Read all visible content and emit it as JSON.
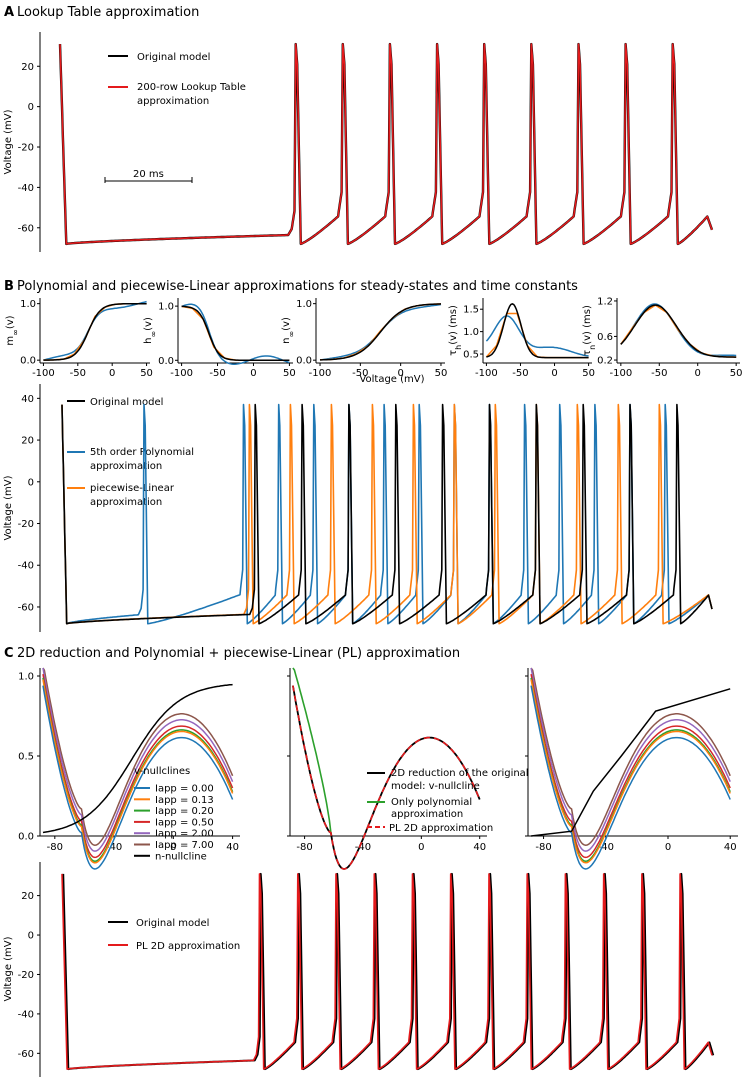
{
  "panels": {
    "A": {
      "label": "A",
      "title": "Lookup Table approximation",
      "chart_data": {
        "type": "line",
        "ylabel": "Voltage (mV)",
        "ylim": [
          -72,
          34
        ],
        "yticks": [
          "20",
          "0",
          "-20",
          "-40",
          "-60"
        ],
        "scalebar": "20 ms",
        "legend": [
          "Original model",
          "200-row Lookup Table approximation"
        ],
        "series": [
          {
            "name": "Original model",
            "color": "#000000"
          },
          {
            "name": "200-row Lookup Table approximation",
            "color": "#e41a1c"
          }
        ],
        "spike_times_ms": [
          0,
          60,
          72,
          84,
          96,
          108,
          120,
          132,
          144,
          156
        ],
        "duration_ms": 166,
        "spike_peak_mv": 31,
        "rest_mv": -68,
        "end_mv": -61
      }
    },
    "B": {
      "label": "B",
      "title": "Polynomial and piecewise-Linear approximations for steady-states and time constants",
      "small_plots": [
        {
          "ylabel_main": "m",
          "ylabel_sub": "∞",
          "ylabel_tail": "(v)",
          "yticks": [
            "1.0",
            "0.0"
          ],
          "ylim": [
            -0.05,
            1.1
          ],
          "kind": "m"
        },
        {
          "ylabel_main": "h",
          "ylabel_sub": "∞",
          "ylabel_tail": "(v)",
          "yticks": [
            "1.0",
            "0.0"
          ],
          "ylim": [
            -0.05,
            1.15
          ],
          "kind": "h"
        },
        {
          "ylabel_main": "n",
          "ylabel_sub": "∞",
          "ylabel_tail": "(v)",
          "yticks": [
            "1.0",
            "0.0"
          ],
          "ylim": [
            -0.05,
            1.1
          ],
          "kind": "n"
        },
        {
          "ylabel_main": "τ",
          "ylabel_sub": "h",
          "ylabel_tail": "(v) (ms)",
          "yticks": [
            "1.5",
            "1.0",
            "0.5"
          ],
          "ylim": [
            0.3,
            1.75
          ],
          "kind": "tauh"
        },
        {
          "ylabel_main": "τ",
          "ylabel_sub": "n",
          "ylabel_tail": "(v) (ms)",
          "yticks": [
            "1.2",
            "0.6",
            "0.2"
          ],
          "ylim": [
            0.15,
            1.25
          ],
          "kind": "taun"
        }
      ],
      "small_xticks": [
        "-100",
        "-50",
        "0",
        "50"
      ],
      "small_xlabel": "Voltage (mV)",
      "chart_data": {
        "type": "line",
        "ylabel": "Voltage (mV)",
        "ylim": [
          -72,
          44
        ],
        "yticks": [
          "40",
          "20",
          "0",
          "-20",
          "-40",
          "-60"
        ],
        "legend": [
          "Original model",
          "5th order Polynomial approximation",
          "piecewise-Linear approximation"
        ],
        "series": [
          {
            "name": "Original model",
            "color": "#000000",
            "spike_times_ms": [
              0,
              66,
              82,
              98,
              114,
              130,
              146,
              162,
              178,
              194,
              210
            ]
          },
          {
            "name": "5th order Polynomial approximation",
            "color": "#1f77b4",
            "spike_times_ms": [
              0,
              28,
              62,
              74,
              86,
              98,
              110,
              122,
              134,
              146,
              158,
              170,
              182,
              194,
              206
            ]
          },
          {
            "name": "piecewise-Linear approximation",
            "color": "#ff7f0e",
            "spike_times_ms": [
              0,
              64,
              78,
              92,
              106,
              120,
              134,
              148,
              162,
              176,
              190,
              204
            ]
          }
        ],
        "duration_ms": 222
      }
    },
    "C": {
      "label": "C",
      "title": "2D reduction and Polynomial + piecewise-Linear (PL) approximation",
      "phase_plots": {
        "xticks": [
          "-80",
          "-40",
          "0",
          "40"
        ],
        "yticks": [
          "1.0",
          "0.5",
          "0.0"
        ],
        "xlim": [
          -90,
          45
        ],
        "ylim": [
          0,
          1.05
        ],
        "left_legend_title": "v-nullclines",
        "left_legend": [
          {
            "label": "Iapp = 0.00",
            "color": "#1f77b4",
            "iapp": 0.0
          },
          {
            "label": "Iapp = 0.13",
            "color": "#ff7f0e",
            "iapp": 0.13
          },
          {
            "label": "Iapp = 0.20",
            "color": "#2ca02c",
            "iapp": 0.2
          },
          {
            "label": "Iapp = 0.50",
            "color": "#d62728",
            "iapp": 0.5
          },
          {
            "label": "Iapp = 2.00",
            "color": "#9467bd",
            "iapp": 2.0
          },
          {
            "label": "Iapp = 7.00",
            "color": "#8c564b",
            "iapp": 7.0
          },
          {
            "label": "n-nullcline",
            "color": "#000000",
            "iapp": null
          }
        ],
        "middle_legend": [
          {
            "label": "2D reduction of the original model: v-nullcline",
            "line1": "2D reduction of the original",
            "line2": "model: v-nullcline",
            "color": "#000000"
          },
          {
            "label": "Only polynomial approximation",
            "line1": "Only polynomial",
            "line2": "approximation",
            "color": "#2ca02c"
          },
          {
            "label": "PL 2D approximation",
            "line1": "PL 2D approximation",
            "line2": "",
            "color": "#e41a1c"
          }
        ]
      },
      "chart_data": {
        "type": "line",
        "ylabel": "Voltage (mV)",
        "ylim": [
          -72,
          34
        ],
        "yticks": [
          "20",
          "0",
          "-20",
          "-40",
          "-60"
        ],
        "legend": [
          "Original model",
          "PL 2D approximation"
        ],
        "series": [
          {
            "name": "Original model",
            "color": "#000000"
          },
          {
            "name": "PL 2D approximation",
            "color": "#e41a1c"
          }
        ],
        "spike_times_ms": [
          0,
          62,
          74,
          86,
          98,
          110,
          122,
          134,
          146,
          158,
          170,
          182,
          194
        ],
        "duration_ms": 204
      }
    }
  }
}
